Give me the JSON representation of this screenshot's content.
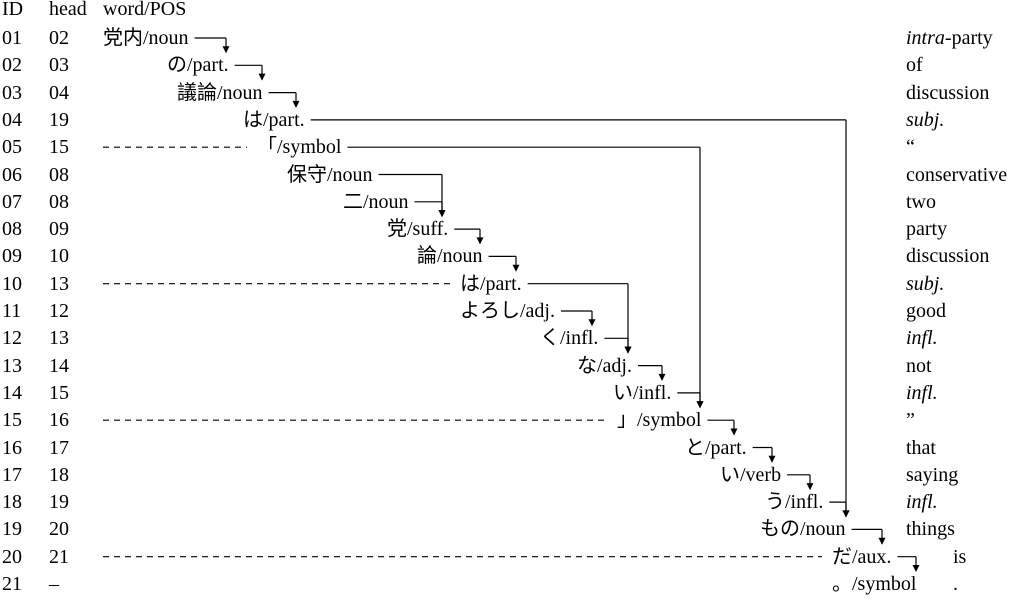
{
  "headers": {
    "id": "ID",
    "head": "head",
    "word": "word/POS"
  },
  "rows": [
    {
      "id": "01",
      "head": "02",
      "word": "党内/noun",
      "gloss_i": "intra",
      "gloss": "-party"
    },
    {
      "id": "02",
      "head": "03",
      "word": "の/part.",
      "gloss_i": "",
      "gloss": "of"
    },
    {
      "id": "03",
      "head": "04",
      "word": "議論/noun",
      "gloss_i": "",
      "gloss": "discussion"
    },
    {
      "id": "04",
      "head": "19",
      "word": "は/part.",
      "gloss_i": "subj.",
      "gloss": ""
    },
    {
      "id": "05",
      "head": "15",
      "word": "「/symbol",
      "gloss_i": "",
      "gloss": "“"
    },
    {
      "id": "06",
      "head": "08",
      "word": "保守/noun",
      "gloss_i": "",
      "gloss": "conservative"
    },
    {
      "id": "07",
      "head": "08",
      "word": "二/noun",
      "gloss_i": "",
      "gloss": "two"
    },
    {
      "id": "08",
      "head": "09",
      "word": "党/suff.",
      "gloss_i": "",
      "gloss": "party"
    },
    {
      "id": "09",
      "head": "10",
      "word": "論/noun",
      "gloss_i": "",
      "gloss": "discussion"
    },
    {
      "id": "10",
      "head": "13",
      "word": "は/part.",
      "gloss_i": "subj.",
      "gloss": ""
    },
    {
      "id": "11",
      "head": "12",
      "word": "よろし/adj.",
      "gloss_i": "",
      "gloss": "good"
    },
    {
      "id": "12",
      "head": "13",
      "word": "く/infl.",
      "gloss_i": "infl.",
      "gloss": ""
    },
    {
      "id": "13",
      "head": "14",
      "word": "な/adj.",
      "gloss_i": "",
      "gloss": "not"
    },
    {
      "id": "14",
      "head": "15",
      "word": "い/infl.",
      "gloss_i": "infl.",
      "gloss": ""
    },
    {
      "id": "15",
      "head": "16",
      "word": "」/symbol",
      "gloss_i": "",
      "gloss": "”"
    },
    {
      "id": "16",
      "head": "17",
      "word": "と/part.",
      "gloss_i": "",
      "gloss": "that"
    },
    {
      "id": "17",
      "head": "18",
      "word": "い/verb",
      "gloss_i": "",
      "gloss": "saying"
    },
    {
      "id": "18",
      "head": "19",
      "word": "う/infl.",
      "gloss_i": "infl.",
      "gloss": ""
    },
    {
      "id": "19",
      "head": "20",
      "word": "もの/noun",
      "gloss_i": "",
      "gloss": "things"
    },
    {
      "id": "20",
      "head": "21",
      "word": "だ/aux.",
      "gloss_i": "",
      "gloss": "is"
    },
    {
      "id": "21",
      "head": "–",
      "word": "。/symbol",
      "gloss_i": "",
      "gloss": "."
    }
  ]
}
